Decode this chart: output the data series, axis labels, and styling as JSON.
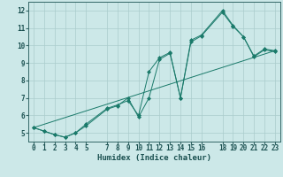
{
  "background_color": "#cce8e8",
  "grid_color": "#aacccc",
  "line_color": "#1a7a6a",
  "xlabel": "Humidex (Indice chaleur)",
  "xlim": [
    -0.5,
    23.5
  ],
  "ylim": [
    4.5,
    12.5
  ],
  "yticks": [
    5,
    6,
    7,
    8,
    9,
    10,
    11,
    12
  ],
  "xticks": [
    0,
    1,
    2,
    3,
    4,
    5,
    7,
    8,
    9,
    10,
    11,
    12,
    13,
    14,
    15,
    16,
    18,
    19,
    20,
    21,
    22,
    23
  ],
  "series1_x": [
    0,
    1,
    2,
    3,
    4,
    5,
    7,
    8,
    9,
    10,
    11,
    12,
    13,
    14,
    15,
    16,
    18,
    19,
    20,
    21,
    22,
    23
  ],
  "series1_y": [
    5.3,
    5.1,
    4.9,
    4.75,
    5.0,
    5.5,
    6.4,
    6.6,
    6.85,
    6.0,
    8.5,
    9.3,
    9.6,
    7.0,
    10.3,
    10.6,
    12.0,
    11.15,
    10.5,
    9.4,
    9.8,
    9.7
  ],
  "series2_x": [
    0,
    1,
    2,
    3,
    4,
    5,
    7,
    8,
    9,
    10,
    11,
    12,
    13,
    14,
    15,
    16,
    18,
    19,
    20,
    21,
    22,
    23
  ],
  "series2_y": [
    5.3,
    5.1,
    4.9,
    4.75,
    5.0,
    5.4,
    6.35,
    6.55,
    7.0,
    5.9,
    7.0,
    9.2,
    9.55,
    7.0,
    10.2,
    10.55,
    11.9,
    11.1,
    10.5,
    9.35,
    9.75,
    9.65
  ],
  "series3_x": [
    0,
    23
  ],
  "series3_y": [
    5.3,
    9.7
  ],
  "font_size_label": 6.5,
  "font_size_tick": 5.5
}
